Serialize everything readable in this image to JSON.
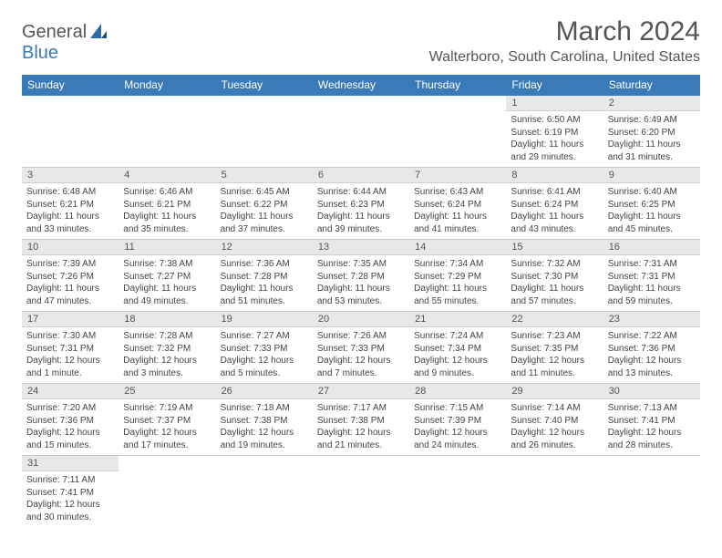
{
  "logo": {
    "text1": "General",
    "text2": "Blue"
  },
  "title": "March 2024",
  "location": "Walterboro, South Carolina, United States",
  "colors": {
    "header_bg": "#3a7ab8",
    "header_fg": "#ffffff",
    "daynum_bg": "#e8e8e8",
    "text": "#555555",
    "border": "#bfc8cf"
  },
  "weekdays": [
    "Sunday",
    "Monday",
    "Tuesday",
    "Wednesday",
    "Thursday",
    "Friday",
    "Saturday"
  ],
  "weeks": [
    [
      null,
      null,
      null,
      null,
      null,
      {
        "n": "1",
        "sr": "Sunrise: 6:50 AM",
        "ss": "Sunset: 6:19 PM",
        "dl": "Daylight: 11 hours and 29 minutes."
      },
      {
        "n": "2",
        "sr": "Sunrise: 6:49 AM",
        "ss": "Sunset: 6:20 PM",
        "dl": "Daylight: 11 hours and 31 minutes."
      }
    ],
    [
      {
        "n": "3",
        "sr": "Sunrise: 6:48 AM",
        "ss": "Sunset: 6:21 PM",
        "dl": "Daylight: 11 hours and 33 minutes."
      },
      {
        "n": "4",
        "sr": "Sunrise: 6:46 AM",
        "ss": "Sunset: 6:21 PM",
        "dl": "Daylight: 11 hours and 35 minutes."
      },
      {
        "n": "5",
        "sr": "Sunrise: 6:45 AM",
        "ss": "Sunset: 6:22 PM",
        "dl": "Daylight: 11 hours and 37 minutes."
      },
      {
        "n": "6",
        "sr": "Sunrise: 6:44 AM",
        "ss": "Sunset: 6:23 PM",
        "dl": "Daylight: 11 hours and 39 minutes."
      },
      {
        "n": "7",
        "sr": "Sunrise: 6:43 AM",
        "ss": "Sunset: 6:24 PM",
        "dl": "Daylight: 11 hours and 41 minutes."
      },
      {
        "n": "8",
        "sr": "Sunrise: 6:41 AM",
        "ss": "Sunset: 6:24 PM",
        "dl": "Daylight: 11 hours and 43 minutes."
      },
      {
        "n": "9",
        "sr": "Sunrise: 6:40 AM",
        "ss": "Sunset: 6:25 PM",
        "dl": "Daylight: 11 hours and 45 minutes."
      }
    ],
    [
      {
        "n": "10",
        "sr": "Sunrise: 7:39 AM",
        "ss": "Sunset: 7:26 PM",
        "dl": "Daylight: 11 hours and 47 minutes."
      },
      {
        "n": "11",
        "sr": "Sunrise: 7:38 AM",
        "ss": "Sunset: 7:27 PM",
        "dl": "Daylight: 11 hours and 49 minutes."
      },
      {
        "n": "12",
        "sr": "Sunrise: 7:36 AM",
        "ss": "Sunset: 7:28 PM",
        "dl": "Daylight: 11 hours and 51 minutes."
      },
      {
        "n": "13",
        "sr": "Sunrise: 7:35 AM",
        "ss": "Sunset: 7:28 PM",
        "dl": "Daylight: 11 hours and 53 minutes."
      },
      {
        "n": "14",
        "sr": "Sunrise: 7:34 AM",
        "ss": "Sunset: 7:29 PM",
        "dl": "Daylight: 11 hours and 55 minutes."
      },
      {
        "n": "15",
        "sr": "Sunrise: 7:32 AM",
        "ss": "Sunset: 7:30 PM",
        "dl": "Daylight: 11 hours and 57 minutes."
      },
      {
        "n": "16",
        "sr": "Sunrise: 7:31 AM",
        "ss": "Sunset: 7:31 PM",
        "dl": "Daylight: 11 hours and 59 minutes."
      }
    ],
    [
      {
        "n": "17",
        "sr": "Sunrise: 7:30 AM",
        "ss": "Sunset: 7:31 PM",
        "dl": "Daylight: 12 hours and 1 minute."
      },
      {
        "n": "18",
        "sr": "Sunrise: 7:28 AM",
        "ss": "Sunset: 7:32 PM",
        "dl": "Daylight: 12 hours and 3 minutes."
      },
      {
        "n": "19",
        "sr": "Sunrise: 7:27 AM",
        "ss": "Sunset: 7:33 PM",
        "dl": "Daylight: 12 hours and 5 minutes."
      },
      {
        "n": "20",
        "sr": "Sunrise: 7:26 AM",
        "ss": "Sunset: 7:33 PM",
        "dl": "Daylight: 12 hours and 7 minutes."
      },
      {
        "n": "21",
        "sr": "Sunrise: 7:24 AM",
        "ss": "Sunset: 7:34 PM",
        "dl": "Daylight: 12 hours and 9 minutes."
      },
      {
        "n": "22",
        "sr": "Sunrise: 7:23 AM",
        "ss": "Sunset: 7:35 PM",
        "dl": "Daylight: 12 hours and 11 minutes."
      },
      {
        "n": "23",
        "sr": "Sunrise: 7:22 AM",
        "ss": "Sunset: 7:36 PM",
        "dl": "Daylight: 12 hours and 13 minutes."
      }
    ],
    [
      {
        "n": "24",
        "sr": "Sunrise: 7:20 AM",
        "ss": "Sunset: 7:36 PM",
        "dl": "Daylight: 12 hours and 15 minutes."
      },
      {
        "n": "25",
        "sr": "Sunrise: 7:19 AM",
        "ss": "Sunset: 7:37 PM",
        "dl": "Daylight: 12 hours and 17 minutes."
      },
      {
        "n": "26",
        "sr": "Sunrise: 7:18 AM",
        "ss": "Sunset: 7:38 PM",
        "dl": "Daylight: 12 hours and 19 minutes."
      },
      {
        "n": "27",
        "sr": "Sunrise: 7:17 AM",
        "ss": "Sunset: 7:38 PM",
        "dl": "Daylight: 12 hours and 21 minutes."
      },
      {
        "n": "28",
        "sr": "Sunrise: 7:15 AM",
        "ss": "Sunset: 7:39 PM",
        "dl": "Daylight: 12 hours and 24 minutes."
      },
      {
        "n": "29",
        "sr": "Sunrise: 7:14 AM",
        "ss": "Sunset: 7:40 PM",
        "dl": "Daylight: 12 hours and 26 minutes."
      },
      {
        "n": "30",
        "sr": "Sunrise: 7:13 AM",
        "ss": "Sunset: 7:41 PM",
        "dl": "Daylight: 12 hours and 28 minutes."
      }
    ],
    [
      {
        "n": "31",
        "sr": "Sunrise: 7:11 AM",
        "ss": "Sunset: 7:41 PM",
        "dl": "Daylight: 12 hours and 30 minutes."
      },
      null,
      null,
      null,
      null,
      null,
      null
    ]
  ]
}
